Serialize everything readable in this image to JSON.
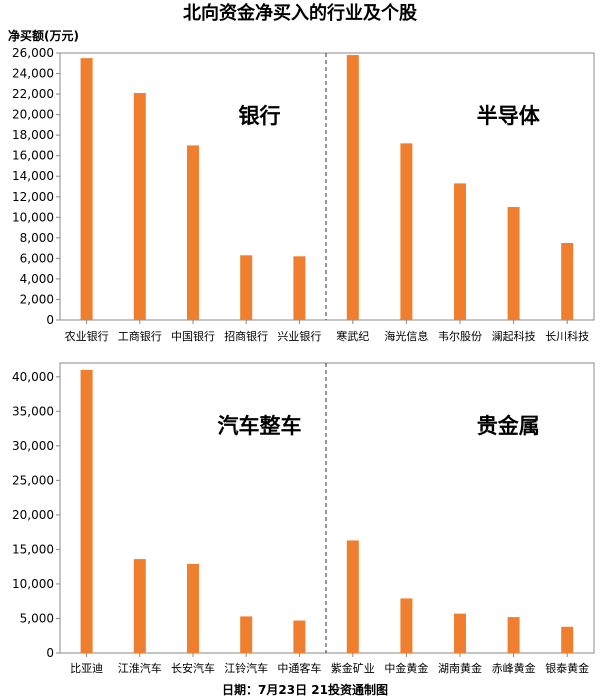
{
  "header": {
    "title": "北向资金净买入的行业及个股",
    "unit_label": "净买额(万元)"
  },
  "footer": {
    "text": "日期：7月23日  21投资通制图"
  },
  "colors": {
    "bar": "#ef7f2f",
    "axis": "#888888",
    "grid_frame": "#888888"
  },
  "chart_data": [
    {
      "type": "bar",
      "ylabel": "净买额(万元)",
      "ylim": [
        0,
        26000
      ],
      "yticks": [
        "0",
        "2,000",
        "4,000",
        "6,000",
        "8,000",
        "10,000",
        "12,000",
        "14,000",
        "16,000",
        "18,000",
        "20,000",
        "22,000",
        "24,000",
        "26,000"
      ],
      "ytick_values": [
        0,
        2000,
        4000,
        6000,
        8000,
        10000,
        12000,
        14000,
        16000,
        18000,
        20000,
        22000,
        24000,
        26000
      ],
      "groups": [
        {
          "label": "银行",
          "categories": [
            "农业银行",
            "工商银行",
            "中国银行",
            "招商银行",
            "兴业银行"
          ],
          "values": [
            25500,
            22100,
            17000,
            6300,
            6200
          ]
        },
        {
          "label": "半导体",
          "categories": [
            "寒武纪",
            "海光信息",
            "韦尔股份",
            "澜起科技",
            "长川科技"
          ],
          "values": [
            25800,
            17200,
            13300,
            11000,
            7500
          ]
        }
      ]
    },
    {
      "type": "bar",
      "ylim": [
        0,
        42000
      ],
      "yticks": [
        "0",
        "5,000",
        "10,000",
        "15,000",
        "20,000",
        "25,000",
        "30,000",
        "35,000",
        "40,000"
      ],
      "ytick_values": [
        0,
        5000,
        10000,
        15000,
        20000,
        25000,
        30000,
        35000,
        40000
      ],
      "groups": [
        {
          "label": "汽车整车",
          "categories": [
            "比亚迪",
            "江淮汽车",
            "长安汽车",
            "江铃汽车",
            "中通客车"
          ],
          "values": [
            41000,
            13600,
            12900,
            5300,
            4700
          ]
        },
        {
          "label": "贵金属",
          "categories": [
            "紫金矿业",
            "中金黄金",
            "湖南黄金",
            "赤峰黄金",
            "银泰黄金"
          ],
          "values": [
            16300,
            7900,
            5700,
            5200,
            3800
          ]
        }
      ]
    }
  ]
}
